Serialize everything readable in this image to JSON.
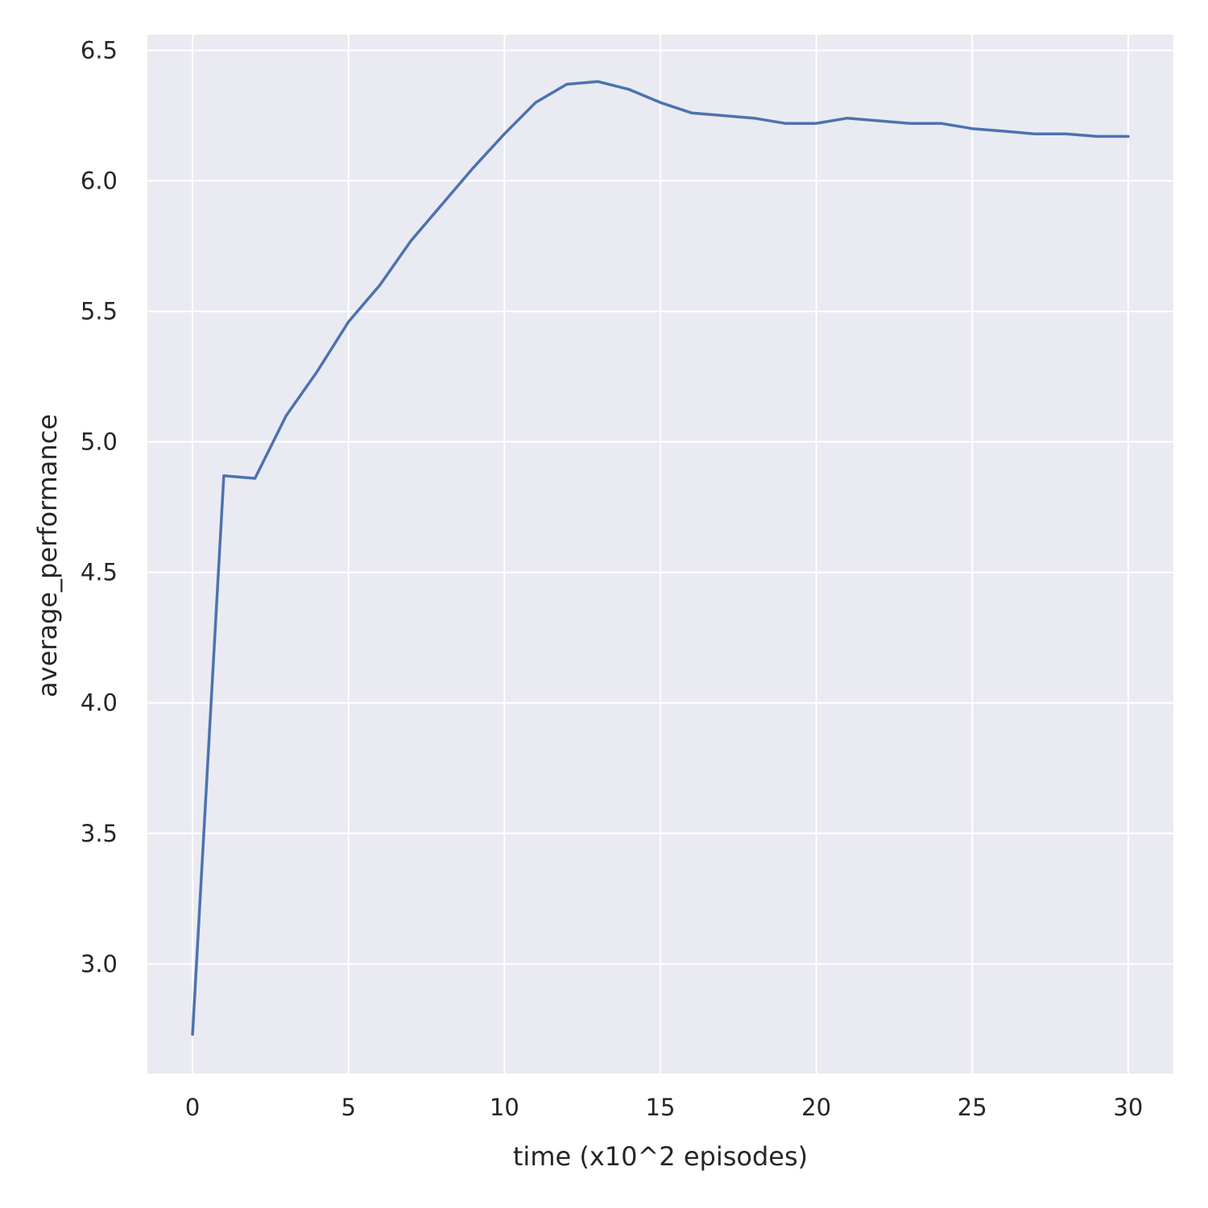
{
  "chart_data": {
    "type": "line",
    "xlabel": "time (x10^2 episodes)",
    "ylabel": "average_performance",
    "xlim": [
      -1.45,
      31.45
    ],
    "ylim": [
      2.58,
      6.56
    ],
    "xticks": [
      0,
      5,
      10,
      15,
      20,
      25,
      30
    ],
    "xtick_labels": [
      "0",
      "5",
      "10",
      "15",
      "20",
      "25",
      "30"
    ],
    "yticks": [
      3.0,
      3.5,
      4.0,
      4.5,
      5.0,
      5.5,
      6.0,
      6.5
    ],
    "ytick_labels": [
      "3.0",
      "3.5",
      "4.0",
      "4.5",
      "5.0",
      "5.5",
      "6.0",
      "6.5"
    ],
    "grid": true,
    "background_color": "#eaeaf2",
    "grid_color": "#ffffff",
    "series": [
      {
        "color": "#4c72b0",
        "x": [
          0,
          1,
          2,
          3,
          4,
          5,
          6,
          7,
          8,
          9,
          10,
          11,
          12,
          13,
          14,
          15,
          16,
          17,
          18,
          19,
          20,
          21,
          22,
          23,
          24,
          25,
          26,
          27,
          28,
          29,
          30
        ],
        "y": [
          2.73,
          4.87,
          4.86,
          5.1,
          5.27,
          5.46,
          5.6,
          5.77,
          5.91,
          6.05,
          6.18,
          6.3,
          6.37,
          6.38,
          6.35,
          6.3,
          6.26,
          6.25,
          6.24,
          6.22,
          6.22,
          6.24,
          6.23,
          6.22,
          6.22,
          6.2,
          6.19,
          6.18,
          6.18,
          6.17,
          6.17
        ]
      }
    ]
  }
}
